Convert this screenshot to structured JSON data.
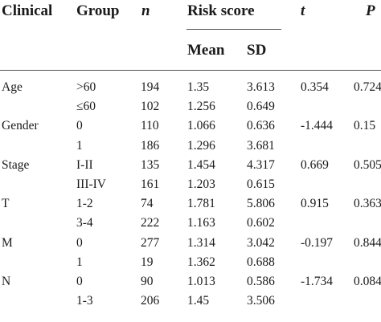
{
  "headers": {
    "clinical": "Clinical",
    "group": "Group",
    "n": "n",
    "risk_score": "Risk score",
    "t": "t",
    "p": "P",
    "mean": "Mean",
    "sd": "SD"
  },
  "rows": [
    {
      "clinical": "Age",
      "group": ">60",
      "n": "194",
      "mean": "1.35",
      "sd": "3.613",
      "t": "0.354",
      "p": "0.724"
    },
    {
      "clinical": "",
      "group": "≤60",
      "n": "102",
      "mean": "1.256",
      "sd": "0.649",
      "t": "",
      "p": ""
    },
    {
      "clinical": "Gender",
      "group": "0",
      "n": "110",
      "mean": "1.066",
      "sd": "0.636",
      "t": "-1.444",
      "p": "0.15"
    },
    {
      "clinical": "",
      "group": "1",
      "n": "186",
      "mean": "1.296",
      "sd": "3.681",
      "t": "",
      "p": ""
    },
    {
      "clinical": "Stage",
      "group": "I-II",
      "n": "135",
      "mean": "1.454",
      "sd": "4.317",
      "t": "0.669",
      "p": "0.505"
    },
    {
      "clinical": "",
      "group": "III-IV",
      "n": "161",
      "mean": "1.203",
      "sd": "0.615",
      "t": "",
      "p": ""
    },
    {
      "clinical": "T",
      "group": "1-2",
      "n": "74",
      "mean": "1.781",
      "sd": "5.806",
      "t": "0.915",
      "p": "0.363"
    },
    {
      "clinical": "",
      "group": "3-4",
      "n": "222",
      "mean": "1.163",
      "sd": "0.602",
      "t": "",
      "p": ""
    },
    {
      "clinical": "M",
      "group": "0",
      "n": "277",
      "mean": "1.314",
      "sd": "3.042",
      "t": "-0.197",
      "p": "0.844"
    },
    {
      "clinical": "",
      "group": "1",
      "n": "19",
      "mean": "1.362",
      "sd": "0.688",
      "t": "",
      "p": ""
    },
    {
      "clinical": "N",
      "group": "0",
      "n": "90",
      "mean": "1.013",
      "sd": "0.586",
      "t": "-1.734",
      "p": "0.084"
    },
    {
      "clinical": "",
      "group": "1-3",
      "n": "206",
      "mean": "1.45",
      "sd": "3.506",
      "t": "",
      "p": ""
    }
  ]
}
